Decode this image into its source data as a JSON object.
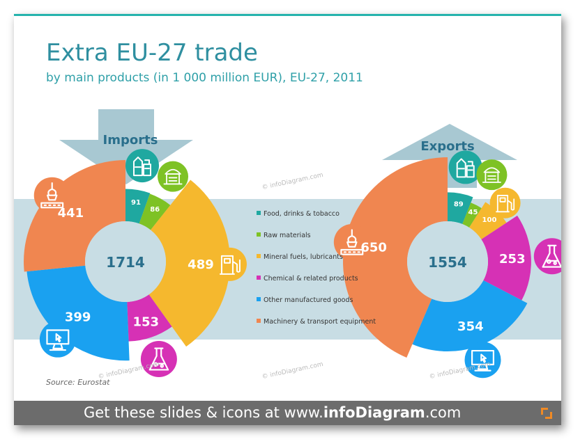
{
  "title": "Extra EU-27 trade",
  "subtitle": "by main products (in 1 000 million EUR),  EU-27, 2011",
  "source": "Source: Eurostat",
  "footer": {
    "prefix": "Get these slides & icons at www.",
    "brand": "infoDiagram",
    "suffix": ".com"
  },
  "watermark": "© infoDiagram.com",
  "colors": {
    "accent": "#26b3ad",
    "band": "#c8dde4",
    "arrow": "#a8c8d2",
    "label_dark": "#2a6f8c"
  },
  "chart_data": [
    {
      "type": "pie",
      "title": "Imports",
      "total": 1714,
      "categories": [
        "Food, drinks & tobacco",
        "Raw materials",
        "Mineral fuels, lubricants",
        "Chemical & related products",
        "Other manufactured goods",
        "Machinery & transport equipment"
      ],
      "values": [
        91,
        86,
        489,
        153,
        399,
        441
      ],
      "colors": [
        "#1fa8a0",
        "#7ec225",
        "#f5b82e",
        "#d631b5",
        "#1aa1f0",
        "#f08650"
      ],
      "icons": [
        "food-drinks-icon",
        "raw-materials-icon",
        "fuel-pump-icon",
        "chemical-flask-icon",
        "computer-icon",
        "crane-icon"
      ]
    },
    {
      "type": "pie",
      "title": "Exports",
      "total": 1554,
      "categories": [
        "Food, drinks & tobacco",
        "Raw materials",
        "Mineral fuels, lubricants",
        "Chemical & related products",
        "Other manufactured goods",
        "Machinery & transport equipment"
      ],
      "values": [
        89,
        45,
        100,
        253,
        354,
        650
      ],
      "colors": [
        "#1fa8a0",
        "#7ec225",
        "#f5b82e",
        "#d631b5",
        "#1aa1f0",
        "#f08650"
      ],
      "icons": [
        "food-drinks-icon",
        "raw-materials-icon",
        "fuel-pump-icon",
        "chemical-flask-icon",
        "computer-icon",
        "crane-icon"
      ]
    }
  ],
  "legend": {
    "items": [
      {
        "label": "Food, drinks & tobacco",
        "color": "#1fa8a0"
      },
      {
        "label": "Raw materials",
        "color": "#7ec225"
      },
      {
        "label": "Mineral fuels, lubricants",
        "color": "#f5b82e"
      },
      {
        "label": "Chemical & related products",
        "color": "#d631b5"
      },
      {
        "label": "Other manufactured goods",
        "color": "#1aa1f0"
      },
      {
        "label": "Machinery & transport equipment",
        "color": "#f08650"
      }
    ]
  }
}
